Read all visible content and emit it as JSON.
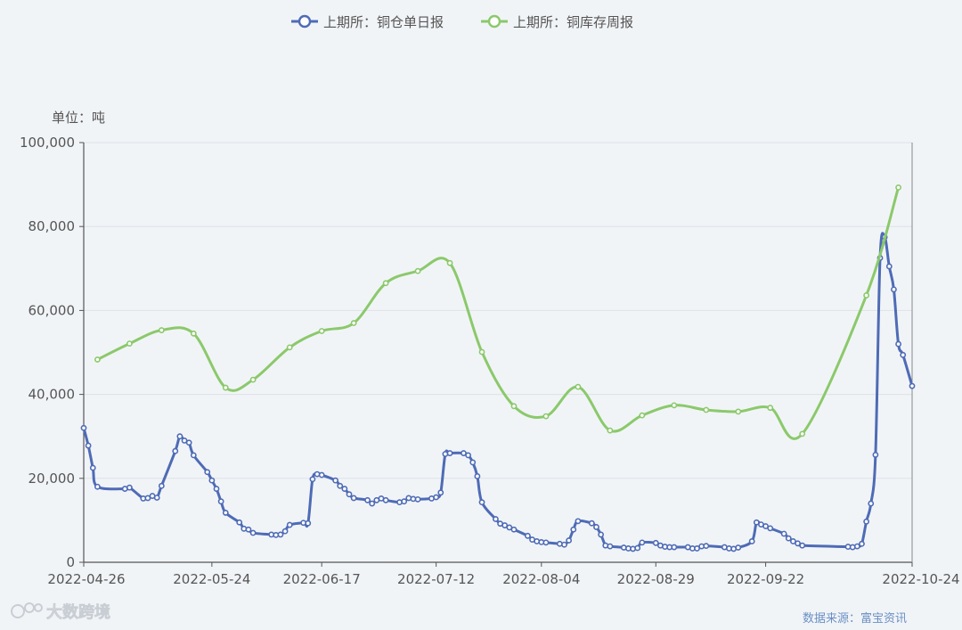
{
  "chart_data": {
    "type": "line",
    "unit_label": "单位：吨",
    "source_label": "数据来源：富宝资讯",
    "watermark": "大数跨境",
    "ylim": [
      0,
      100000
    ],
    "y_ticks": [
      "0",
      "20,000",
      "40,000",
      "60,000",
      "80,000",
      "100,000"
    ],
    "x_ticks": [
      "2022-04-26",
      "2022-05-24",
      "2022-06-17",
      "2022-07-12",
      "2022-08-04",
      "2022-08-29",
      "2022-09-22",
      "2022-10-24"
    ],
    "series": [
      {
        "name": "上期所：铜仓单日报",
        "color": "#4e6bb5",
        "points": [
          [
            "2022-04-26",
            32000
          ],
          [
            "2022-04-27",
            27800
          ],
          [
            "2022-04-28",
            22500
          ],
          [
            "2022-04-29",
            18000
          ],
          [
            "2022-05-05",
            17500
          ],
          [
            "2022-05-06",
            17800
          ],
          [
            "2022-05-09",
            15200
          ],
          [
            "2022-05-10",
            15300
          ],
          [
            "2022-05-11",
            15800
          ],
          [
            "2022-05-12",
            15400
          ],
          [
            "2022-05-13",
            18200
          ],
          [
            "2022-05-16",
            26500
          ],
          [
            "2022-05-17",
            30000
          ],
          [
            "2022-05-18",
            29000
          ],
          [
            "2022-05-19",
            28500
          ],
          [
            "2022-05-20",
            25500
          ],
          [
            "2022-05-23",
            21500
          ],
          [
            "2022-05-24",
            19500
          ],
          [
            "2022-05-25",
            17500
          ],
          [
            "2022-05-26",
            14500
          ],
          [
            "2022-05-27",
            11800
          ],
          [
            "2022-05-30",
            9500
          ],
          [
            "2022-05-31",
            8000
          ],
          [
            "2022-06-01",
            7800
          ],
          [
            "2022-06-02",
            7000
          ],
          [
            "2022-06-06",
            6600
          ],
          [
            "2022-06-07",
            6500
          ],
          [
            "2022-06-08",
            6600
          ],
          [
            "2022-06-09",
            7400
          ],
          [
            "2022-06-10",
            8900
          ],
          [
            "2022-06-13",
            9400
          ],
          [
            "2022-06-14",
            9300
          ],
          [
            "2022-06-15",
            19800
          ],
          [
            "2022-06-16",
            21000
          ],
          [
            "2022-06-17",
            20800
          ],
          [
            "2022-06-20",
            19500
          ],
          [
            "2022-06-21",
            18200
          ],
          [
            "2022-06-22",
            17500
          ],
          [
            "2022-06-23",
            16200
          ],
          [
            "2022-06-24",
            15300
          ],
          [
            "2022-06-27",
            14800
          ],
          [
            "2022-06-28",
            14000
          ],
          [
            "2022-06-29",
            14800
          ],
          [
            "2022-06-30",
            15200
          ],
          [
            "2022-07-01",
            14800
          ],
          [
            "2022-07-04",
            14300
          ],
          [
            "2022-07-05",
            14500
          ],
          [
            "2022-07-06",
            15300
          ],
          [
            "2022-07-07",
            15100
          ],
          [
            "2022-07-08",
            15000
          ],
          [
            "2022-07-11",
            15200
          ],
          [
            "2022-07-12",
            15500
          ],
          [
            "2022-07-13",
            16600
          ],
          [
            "2022-07-14",
            25800
          ],
          [
            "2022-07-15",
            26000
          ],
          [
            "2022-07-18",
            26000
          ],
          [
            "2022-07-19",
            25500
          ],
          [
            "2022-07-20",
            23800
          ],
          [
            "2022-07-21",
            20500
          ],
          [
            "2022-07-22",
            14300
          ],
          [
            "2022-07-25",
            10300
          ],
          [
            "2022-07-26",
            9200
          ],
          [
            "2022-07-27",
            8800
          ],
          [
            "2022-07-28",
            8300
          ],
          [
            "2022-07-29",
            7800
          ],
          [
            "2022-08-01",
            6300
          ],
          [
            "2022-08-02",
            5400
          ],
          [
            "2022-08-03",
            5000
          ],
          [
            "2022-08-04",
            4800
          ],
          [
            "2022-08-05",
            4700
          ],
          [
            "2022-08-08",
            4400
          ],
          [
            "2022-08-09",
            4200
          ],
          [
            "2022-08-10",
            5200
          ],
          [
            "2022-08-11",
            7800
          ],
          [
            "2022-08-12",
            9800
          ],
          [
            "2022-08-15",
            9300
          ],
          [
            "2022-08-16",
            8400
          ],
          [
            "2022-08-17",
            6600
          ],
          [
            "2022-08-18",
            4000
          ],
          [
            "2022-08-19",
            3800
          ],
          [
            "2022-08-22",
            3500
          ],
          [
            "2022-08-23",
            3300
          ],
          [
            "2022-08-24",
            3200
          ],
          [
            "2022-08-25",
            3400
          ],
          [
            "2022-08-26",
            4700
          ],
          [
            "2022-08-29",
            4600
          ],
          [
            "2022-08-30",
            4000
          ],
          [
            "2022-08-31",
            3700
          ],
          [
            "2022-09-01",
            3600
          ],
          [
            "2022-09-02",
            3600
          ],
          [
            "2022-09-05",
            3600
          ],
          [
            "2022-09-06",
            3300
          ],
          [
            "2022-09-07",
            3300
          ],
          [
            "2022-09-08",
            3800
          ],
          [
            "2022-09-09",
            3900
          ],
          [
            "2022-09-13",
            3600
          ],
          [
            "2022-09-14",
            3300
          ],
          [
            "2022-09-15",
            3200
          ],
          [
            "2022-09-16",
            3500
          ],
          [
            "2022-09-19",
            5000
          ],
          [
            "2022-09-20",
            9500
          ],
          [
            "2022-09-21",
            9000
          ],
          [
            "2022-09-22",
            8600
          ],
          [
            "2022-09-23",
            8100
          ],
          [
            "2022-09-26",
            6800
          ],
          [
            "2022-09-27",
            5700
          ],
          [
            "2022-09-28",
            5000
          ],
          [
            "2022-09-29",
            4500
          ],
          [
            "2022-09-30",
            4000
          ],
          [
            "2022-10-10",
            3700
          ],
          [
            "2022-10-11",
            3600
          ],
          [
            "2022-10-12",
            3800
          ],
          [
            "2022-10-13",
            4400
          ],
          [
            "2022-10-14",
            9700
          ],
          [
            "2022-10-15",
            14000
          ],
          [
            "2022-10-16",
            25600
          ],
          [
            "2022-10-17",
            72500
          ],
          [
            "2022-10-18",
            77500
          ],
          [
            "2022-10-19",
            70500
          ],
          [
            "2022-10-20",
            65000
          ],
          [
            "2022-10-21",
            52000
          ],
          [
            "2022-10-22",
            49400
          ],
          [
            "2022-10-24",
            42000
          ]
        ]
      },
      {
        "name": "上期所：铜库存周报",
        "color": "#8bc96b",
        "points": [
          [
            "2022-04-29",
            48300
          ],
          [
            "2022-05-06",
            52100
          ],
          [
            "2022-05-13",
            55300
          ],
          [
            "2022-05-20",
            54500
          ],
          [
            "2022-05-27",
            41600
          ],
          [
            "2022-06-02",
            43500
          ],
          [
            "2022-06-10",
            51200
          ],
          [
            "2022-06-17",
            55100
          ],
          [
            "2022-06-24",
            57000
          ],
          [
            "2022-07-01",
            66500
          ],
          [
            "2022-07-08",
            69400
          ],
          [
            "2022-07-15",
            71300
          ],
          [
            "2022-07-22",
            50100
          ],
          [
            "2022-07-29",
            37200
          ],
          [
            "2022-08-05",
            34800
          ],
          [
            "2022-08-12",
            41800
          ],
          [
            "2022-08-19",
            31400
          ],
          [
            "2022-08-26",
            35000
          ],
          [
            "2022-09-02",
            37400
          ],
          [
            "2022-09-09",
            36300
          ],
          [
            "2022-09-16",
            35900
          ],
          [
            "2022-09-23",
            36800
          ],
          [
            "2022-09-30",
            30600
          ],
          [
            "2022-10-14",
            63600
          ],
          [
            "2022-10-21",
            89300
          ]
        ]
      }
    ]
  }
}
